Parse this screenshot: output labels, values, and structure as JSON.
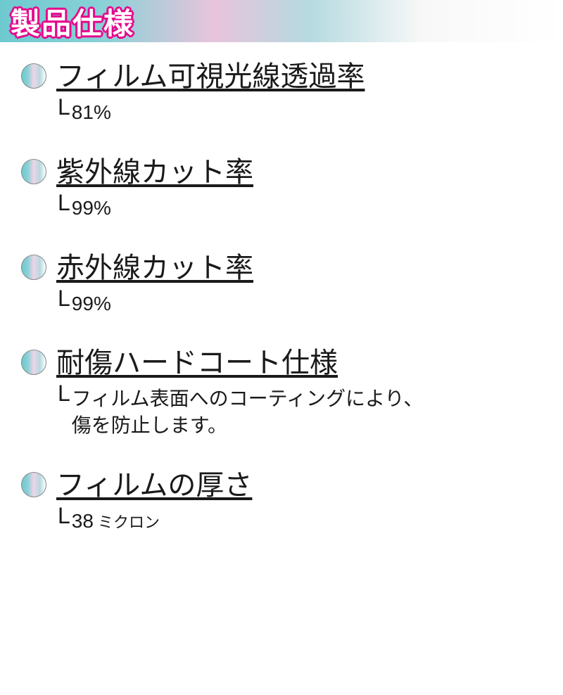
{
  "header": {
    "title": "製品仕様"
  },
  "specs": [
    {
      "label": "フィルム可視光線透過率",
      "value": "81%"
    },
    {
      "label": "紫外線カット率",
      "value": "99%"
    },
    {
      "label": "赤外線カット率",
      "value": "99%"
    },
    {
      "label": "耐傷ハードコート仕様",
      "value": "フィルム表面へのコーティングにより、\n傷を防止します。"
    },
    {
      "label": "フィルムの厚さ",
      "value": "38",
      "unit": "ミクロン"
    }
  ],
  "colors": {
    "accent_pink": "#e6058c",
    "gradient_teal": "#6ecad0",
    "gradient_pink": "#e8c4dc",
    "text": "#1a1a1a"
  }
}
